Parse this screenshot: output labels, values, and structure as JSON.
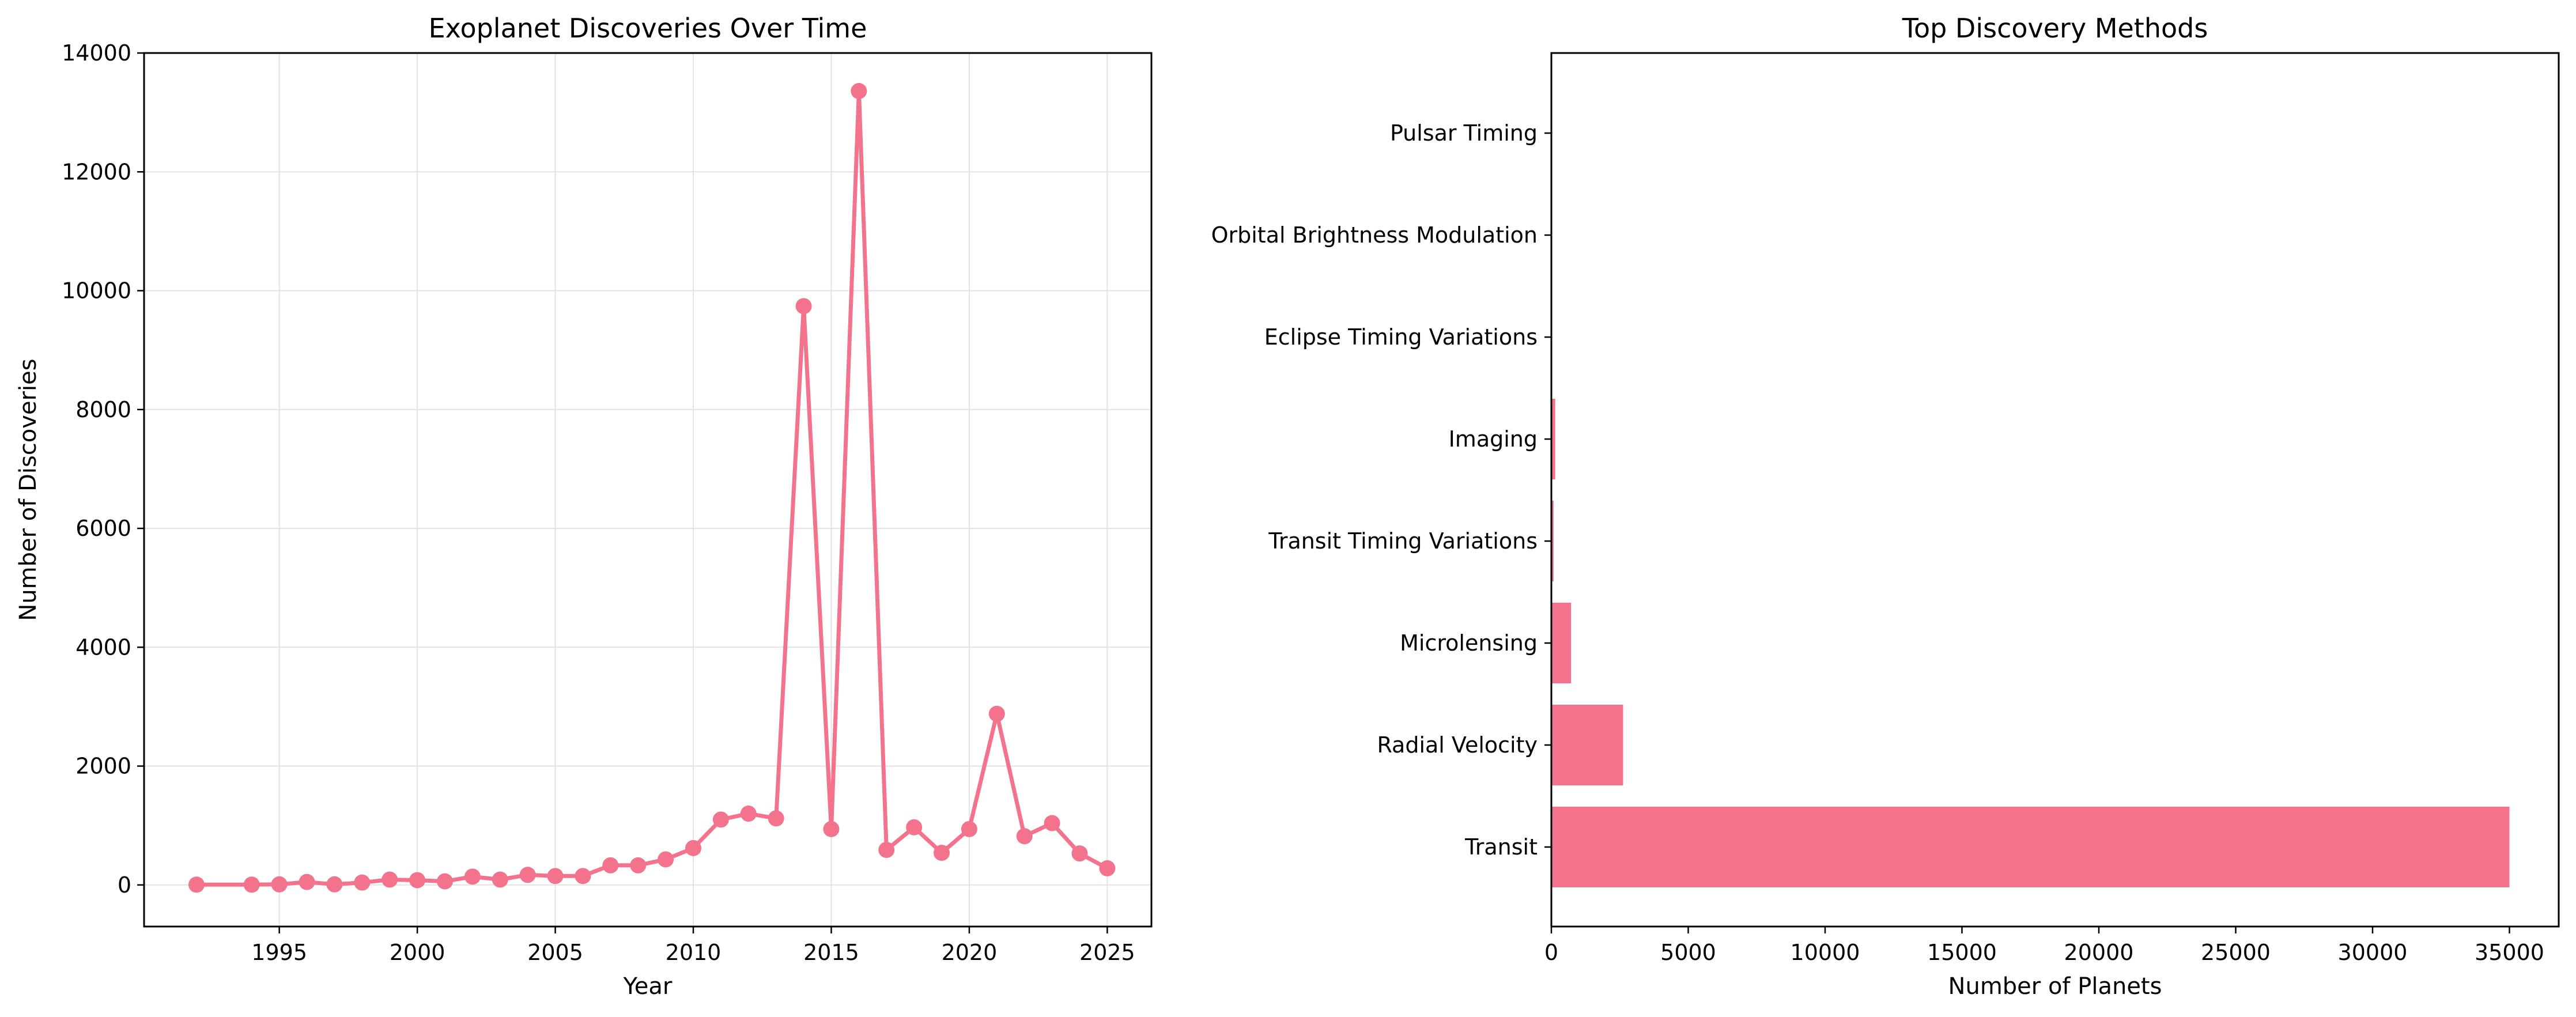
{
  "colors": {
    "series": "#f3728c",
    "axis": "#000000",
    "grid": "#e3e3e3",
    "background": "#ffffff"
  },
  "chart_data": [
    {
      "type": "line",
      "title": "Exoplanet Discoveries Over Time",
      "xlabel": "Year",
      "ylabel": "Number of Discoveries",
      "xlim": [
        1990.1,
        2026.6
      ],
      "ylim": [
        -700,
        14000
      ],
      "xticks": [
        1995,
        2000,
        2005,
        2010,
        2015,
        2020,
        2025
      ],
      "yticks": [
        0,
        2000,
        4000,
        6000,
        8000,
        10000,
        12000,
        14000
      ],
      "grid": true,
      "markers": true,
      "x": [
        1992,
        1994,
        1995,
        1996,
        1997,
        1998,
        1999,
        2000,
        2001,
        2002,
        2003,
        2004,
        2005,
        2006,
        2007,
        2008,
        2009,
        2010,
        2011,
        2012,
        2013,
        2014,
        2015,
        2016,
        2017,
        2018,
        2019,
        2020,
        2021,
        2022,
        2023,
        2024,
        2025
      ],
      "y": [
        5,
        5,
        10,
        50,
        10,
        40,
        90,
        80,
        60,
        140,
        90,
        170,
        150,
        150,
        330,
        330,
        430,
        620,
        1100,
        1200,
        1120,
        9740,
        940,
        13360,
        590,
        970,
        540,
        940,
        2880,
        820,
        1040,
        530,
        280
      ]
    },
    {
      "type": "bar",
      "orientation": "horizontal",
      "title": "Top Discovery Methods",
      "xlabel": "Number of Planets",
      "ylabel": "",
      "xlim": [
        0,
        36800
      ],
      "xticks": [
        0,
        5000,
        10000,
        15000,
        20000,
        25000,
        30000,
        35000
      ],
      "grid": false,
      "categories": [
        "Transit",
        "Radial Velocity",
        "Microlensing",
        "Transit Timing Variations",
        "Imaging",
        "Eclipse Timing Variations",
        "Orbital Brightness Modulation",
        "Pulsar Timing"
      ],
      "values": [
        35000,
        2620,
        720,
        80,
        140,
        20,
        10,
        8
      ]
    }
  ]
}
